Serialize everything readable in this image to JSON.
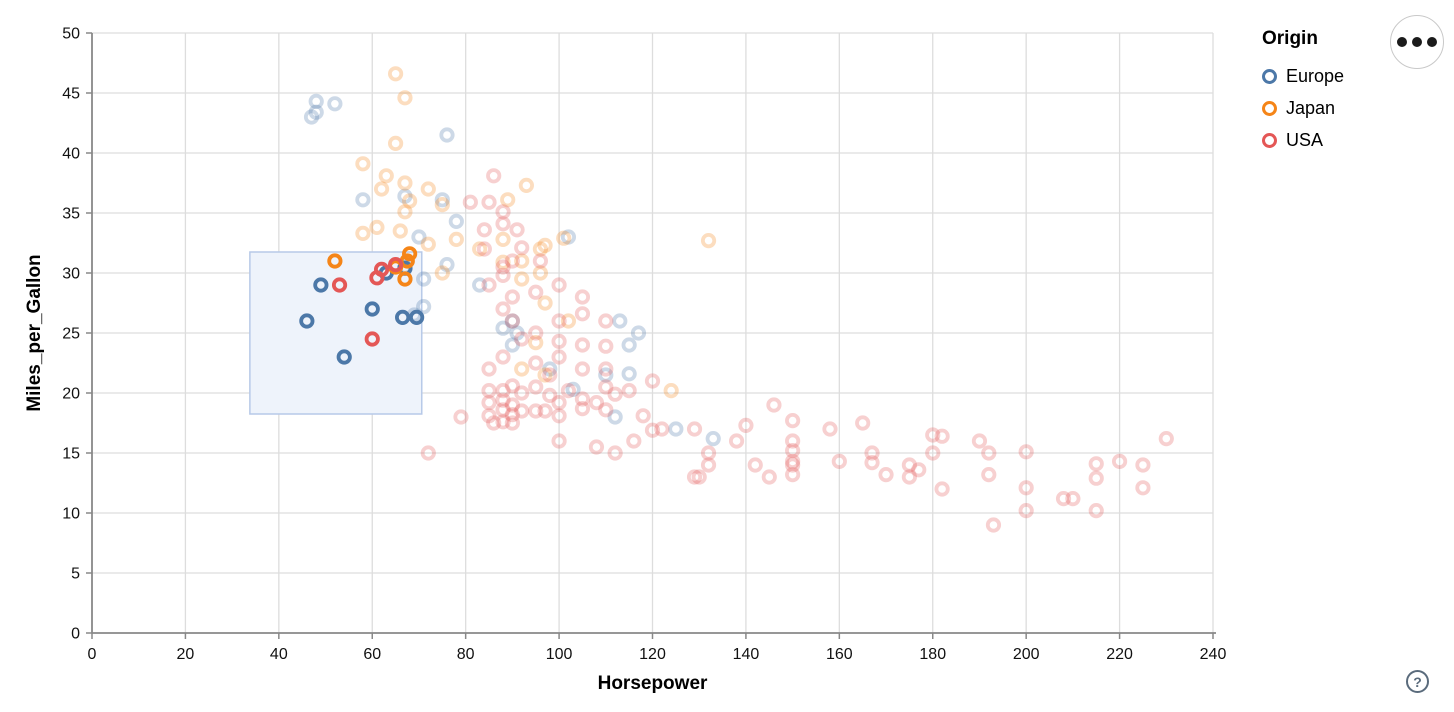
{
  "controls": {
    "menu_button": {
      "icon": "ellipsis",
      "dots": 3
    },
    "help_button": {
      "label": "?"
    }
  },
  "chart_data": {
    "type": "scatter",
    "title": "",
    "xlabel": "Horsepower",
    "ylabel": "Miles_per_Gallon",
    "xlim": [
      0,
      240
    ],
    "ylim": [
      0,
      50
    ],
    "xticks": [
      0,
      20,
      40,
      60,
      80,
      100,
      120,
      140,
      160,
      180,
      200,
      220,
      240
    ],
    "yticks": [
      0,
      5,
      10,
      15,
      20,
      25,
      30,
      35,
      40,
      45,
      50
    ],
    "grid": true,
    "legend": {
      "title": "Origin",
      "position": "top-right",
      "entries": [
        {
          "label": "Europe",
          "color": "#4c78a8"
        },
        {
          "label": "Japan",
          "color": "#f58518"
        },
        {
          "label": "USA",
          "color": "#e45756"
        }
      ]
    },
    "selection_brush": {
      "x_range": [
        33.8,
        70.6
      ],
      "y_range": [
        18.25,
        31.75
      ],
      "fill": "#eef3fb",
      "stroke": "#b7c9e8"
    },
    "point_style": {
      "shape": "ring",
      "radius": 5.7,
      "stroke_width": 3.8,
      "selected_opacity": 1,
      "unselected_opacity": 0.28
    },
    "series": [
      {
        "name": "Europe",
        "color": "#4c78a8",
        "points": [
          [
            46,
            26,
            1
          ],
          [
            49,
            29,
            1
          ],
          [
            54,
            23,
            1
          ],
          [
            60,
            27,
            1
          ],
          [
            63,
            30,
            1
          ],
          [
            67,
            30.4,
            1
          ],
          [
            66.5,
            26.3,
            1
          ],
          [
            69.5,
            26.3,
            1
          ],
          [
            48,
            44.3,
            0
          ],
          [
            52,
            44.1,
            0
          ],
          [
            48,
            43.4,
            0
          ],
          [
            47,
            43,
            0
          ],
          [
            76,
            41.5,
            0
          ],
          [
            58,
            36.1,
            0
          ],
          [
            67,
            36.4,
            0
          ],
          [
            75,
            36.1,
            0
          ],
          [
            78,
            34.3,
            0
          ],
          [
            70,
            33,
            0
          ],
          [
            102,
            33,
            0
          ],
          [
            76,
            30.7,
            0
          ],
          [
            67,
            30.5,
            0
          ],
          [
            71,
            29.5,
            0
          ],
          [
            83,
            29,
            0
          ],
          [
            69,
            26.5,
            0
          ],
          [
            71,
            27.2,
            0
          ],
          [
            88,
            25.4,
            0
          ],
          [
            90,
            24,
            0
          ],
          [
            91,
            25,
            0
          ],
          [
            90,
            26,
            0
          ],
          [
            113,
            26,
            0
          ],
          [
            117,
            25,
            0
          ],
          [
            115,
            24,
            0
          ],
          [
            98,
            22,
            0
          ],
          [
            110,
            21.5,
            0
          ],
          [
            115,
            21.6,
            0
          ],
          [
            103,
            20.3,
            0
          ],
          [
            112,
            18,
            0
          ],
          [
            125,
            17,
            0
          ],
          [
            133,
            16.2,
            0
          ]
        ]
      },
      {
        "name": "Japan",
        "color": "#f58518",
        "points": [
          [
            52,
            31,
            1
          ],
          [
            68,
            31.6,
            1
          ],
          [
            67.5,
            31,
            1
          ],
          [
            65,
            30.5,
            1
          ],
          [
            67,
            29.5,
            1
          ],
          [
            65,
            46.6,
            0
          ],
          [
            67,
            44.6,
            0
          ],
          [
            65,
            40.8,
            0
          ],
          [
            58,
            39.1,
            0
          ],
          [
            63,
            38.1,
            0
          ],
          [
            62,
            37,
            0
          ],
          [
            67,
            37.5,
            0
          ],
          [
            68,
            36,
            0
          ],
          [
            72,
            37,
            0
          ],
          [
            93,
            37.3,
            0
          ],
          [
            89,
            36.1,
            0
          ],
          [
            75,
            35.7,
            0
          ],
          [
            67,
            35.1,
            0
          ],
          [
            66,
            33.5,
            0
          ],
          [
            61,
            33.8,
            0
          ],
          [
            58,
            33.3,
            0
          ],
          [
            72,
            32.4,
            0
          ],
          [
            78,
            32.8,
            0
          ],
          [
            83,
            32,
            0
          ],
          [
            92,
            31,
            0
          ],
          [
            96,
            32,
            0
          ],
          [
            88,
            32.8,
            0
          ],
          [
            97,
            32.3,
            0
          ],
          [
            101,
            32.9,
            0
          ],
          [
            132,
            32.7,
            0
          ],
          [
            75,
            30,
            0
          ],
          [
            92,
            29.5,
            0
          ],
          [
            96,
            30,
            0
          ],
          [
            88,
            30.9,
            0
          ],
          [
            97,
            27.5,
            0
          ],
          [
            95,
            24.2,
            0
          ],
          [
            102,
            26,
            0
          ],
          [
            92,
            22,
            0
          ],
          [
            97,
            21.5,
            0
          ],
          [
            124,
            20.2,
            0
          ]
        ]
      },
      {
        "name": "USA",
        "color": "#e45756",
        "points": [
          [
            53,
            29,
            1
          ],
          [
            60,
            24.5,
            1
          ],
          [
            62,
            30.3,
            1
          ],
          [
            61,
            29.6,
            1
          ],
          [
            65,
            30.7,
            1
          ],
          [
            86,
            38.1,
            0
          ],
          [
            81,
            35.9,
            0
          ],
          [
            85,
            35.9,
            0
          ],
          [
            88,
            35.1,
            0
          ],
          [
            88,
            34.1,
            0
          ],
          [
            84,
            33.6,
            0
          ],
          [
            91,
            33.6,
            0
          ],
          [
            90,
            31,
            0
          ],
          [
            84,
            32,
            0
          ],
          [
            92,
            32.1,
            0
          ],
          [
            96,
            31,
            0
          ],
          [
            88,
            30.5,
            0
          ],
          [
            88,
            29.8,
            0
          ],
          [
            85,
            29,
            0
          ],
          [
            90,
            28,
            0
          ],
          [
            95,
            28.4,
            0
          ],
          [
            100,
            29,
            0
          ],
          [
            105,
            28,
            0
          ],
          [
            90,
            26,
            0
          ],
          [
            88,
            27,
            0
          ],
          [
            95,
            25,
            0
          ],
          [
            100,
            26,
            0
          ],
          [
            105,
            26.6,
            0
          ],
          [
            100,
            24.3,
            0
          ],
          [
            110,
            26,
            0
          ],
          [
            92,
            24.5,
            0
          ],
          [
            105,
            24,
            0
          ],
          [
            100,
            23,
            0
          ],
          [
            95,
            22.5,
            0
          ],
          [
            105,
            22,
            0
          ],
          [
            110,
            22,
            0
          ],
          [
            85,
            22,
            0
          ],
          [
            88,
            23,
            0
          ],
          [
            110,
            23.9,
            0
          ],
          [
            98,
            21.5,
            0
          ],
          [
            85,
            20.2,
            0
          ],
          [
            85,
            19.2,
            0
          ],
          [
            85,
            18.1,
            0
          ],
          [
            86,
            17.5,
            0
          ],
          [
            88,
            20.2,
            0
          ],
          [
            88,
            19.4,
            0
          ],
          [
            88,
            18.6,
            0
          ],
          [
            88,
            17.6,
            0
          ],
          [
            90,
            20.6,
            0
          ],
          [
            90,
            19,
            0
          ],
          [
            90,
            18.2,
            0
          ],
          [
            90,
            17.5,
            0
          ],
          [
            92,
            20,
            0
          ],
          [
            92,
            18.5,
            0
          ],
          [
            95,
            20.5,
            0
          ],
          [
            95,
            18.5,
            0
          ],
          [
            97,
            18.5,
            0
          ],
          [
            98,
            19.8,
            0
          ],
          [
            100,
            19.2,
            0
          ],
          [
            100,
            18.1,
            0
          ],
          [
            102,
            20.2,
            0
          ],
          [
            105,
            19.5,
            0
          ],
          [
            105,
            18.7,
            0
          ],
          [
            108,
            19.2,
            0
          ],
          [
            110,
            18.6,
            0
          ],
          [
            112,
            19.9,
            0
          ],
          [
            110,
            20.5,
            0
          ],
          [
            100,
            16,
            0
          ],
          [
            108,
            15.5,
            0
          ],
          [
            112,
            15,
            0
          ],
          [
            116,
            16,
            0
          ],
          [
            118,
            18.1,
            0
          ],
          [
            120,
            16.9,
            0
          ],
          [
            122,
            17,
            0
          ],
          [
            129,
            17,
            0
          ],
          [
            115,
            20.2,
            0
          ],
          [
            120,
            21,
            0
          ],
          [
            129,
            13,
            0
          ],
          [
            130,
            13,
            0
          ],
          [
            132,
            14,
            0
          ],
          [
            132,
            15,
            0
          ],
          [
            138,
            16,
            0
          ],
          [
            140,
            17.3,
            0
          ],
          [
            142,
            14,
            0
          ],
          [
            145,
            13,
            0
          ],
          [
            146,
            19,
            0
          ],
          [
            150,
            17.7,
            0
          ],
          [
            150,
            16,
            0
          ],
          [
            150,
            15.2,
            0
          ],
          [
            150,
            14.3,
            0
          ],
          [
            150,
            14,
            0
          ],
          [
            150,
            13.2,
            0
          ],
          [
            158,
            17,
            0
          ],
          [
            160,
            14.3,
            0
          ],
          [
            165,
            17.5,
            0
          ],
          [
            167,
            15,
            0
          ],
          [
            167,
            14.2,
            0
          ],
          [
            170,
            13.2,
            0
          ],
          [
            175,
            14,
            0
          ],
          [
            177,
            13.6,
            0
          ],
          [
            175,
            13,
            0
          ],
          [
            180,
            16.5,
            0
          ],
          [
            180,
            15,
            0
          ],
          [
            182,
            16.4,
            0
          ],
          [
            182,
            12,
            0
          ],
          [
            190,
            16,
            0
          ],
          [
            192,
            15,
            0
          ],
          [
            200,
            15.1,
            0
          ],
          [
            192,
            13.2,
            0
          ],
          [
            200,
            12.1,
            0
          ],
          [
            215,
            14.1,
            0
          ],
          [
            215,
            12.9,
            0
          ],
          [
            220,
            14.3,
            0
          ],
          [
            225,
            14,
            0
          ],
          [
            225,
            12.1,
            0
          ],
          [
            210,
            11.2,
            0
          ],
          [
            208,
            11.2,
            0
          ],
          [
            200,
            10.2,
            0
          ],
          [
            215,
            10.2,
            0
          ],
          [
            193,
            9,
            0
          ],
          [
            230,
            16.2,
            0
          ],
          [
            72,
            15,
            0
          ],
          [
            79,
            18,
            0
          ]
        ]
      }
    ]
  }
}
